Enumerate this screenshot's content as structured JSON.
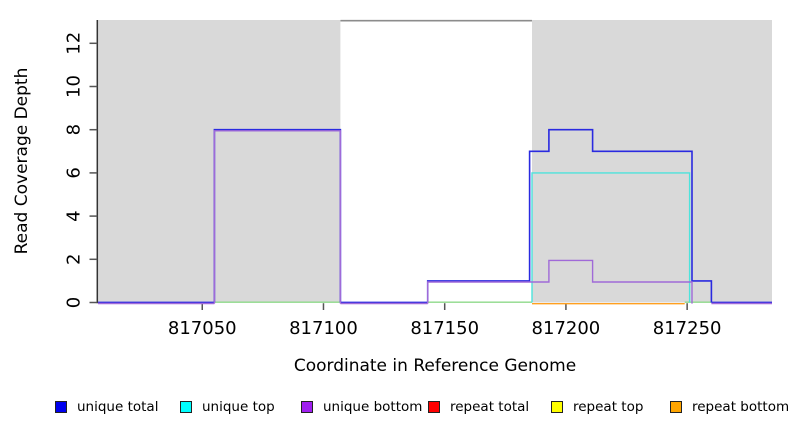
{
  "chart_data": {
    "type": "line",
    "subtype": "step-coverage",
    "title": "",
    "xlabel": "Coordinate in Reference Genome",
    "ylabel": "Read Coverage Depth",
    "xlim": [
      817007,
      817285
    ],
    "ylim": [
      0,
      13
    ],
    "x_ticks": [
      817050,
      817100,
      817150,
      817200,
      817250
    ],
    "y_ticks": [
      0,
      2,
      4,
      6,
      8,
      10,
      12
    ],
    "grid": false,
    "legend_position": "bottom",
    "shaded_regions": [
      {
        "name": "masked-left",
        "x0": 817007,
        "x1": 817107,
        "fill": "#d9d9d9"
      },
      {
        "name": "masked-right",
        "x0": 817186,
        "x1": 817285,
        "fill": "#d9d9d9"
      }
    ],
    "gap_region": {
      "x0": 817107,
      "x1": 817186,
      "fill": "#ffffff",
      "top_border_color": "#8c8c8c"
    },
    "series": [
      {
        "name": "unique total",
        "line_color": "#2a2ae0",
        "legend_color": "#0000ee",
        "points": [
          [
            817007,
            0
          ],
          [
            817055,
            0
          ],
          [
            817055,
            8
          ],
          [
            817107,
            8
          ],
          [
            817107,
            0
          ],
          [
            817143,
            0
          ],
          [
            817143,
            1
          ],
          [
            817185,
            1
          ],
          [
            817185,
            7
          ],
          [
            817193,
            7
          ],
          [
            817193,
            8
          ],
          [
            817211,
            8
          ],
          [
            817211,
            7
          ],
          [
            817252,
            7
          ],
          [
            817252,
            1
          ],
          [
            817260,
            1
          ],
          [
            817260,
            0
          ],
          [
            817285,
            0
          ]
        ]
      },
      {
        "name": "unique top",
        "line_color": "#4de3dc",
        "legend_color": "#00ffff",
        "points": [
          [
            817007,
            0
          ],
          [
            817186,
            0
          ],
          [
            817186,
            6
          ],
          [
            817251,
            6
          ],
          [
            817251,
            0
          ],
          [
            817285,
            0
          ]
        ]
      },
      {
        "name": "unique bottom",
        "line_color": "#a06ad8",
        "legend_color": "#a020f0",
        "points": [
          [
            817007,
            0
          ],
          [
            817055,
            0
          ],
          [
            817055,
            8
          ],
          [
            817107,
            8
          ],
          [
            817107,
            0
          ],
          [
            817143,
            0
          ],
          [
            817143,
            1
          ],
          [
            817193,
            1
          ],
          [
            817193,
            2
          ],
          [
            817211,
            2
          ],
          [
            817211,
            1
          ],
          [
            817252,
            1
          ],
          [
            817252,
            0
          ],
          [
            817285,
            0
          ]
        ]
      },
      {
        "name": "repeat total",
        "line_color": "#dd2222",
        "legend_color": "#ff0000",
        "points": [
          [
            817007,
            0
          ],
          [
            817285,
            0
          ]
        ]
      },
      {
        "name": "repeat top",
        "line_color": "#e8e23c",
        "legend_color": "#ffff00",
        "points": [
          [
            817007,
            0
          ],
          [
            817285,
            0
          ]
        ]
      },
      {
        "name": "repeat bottom",
        "line_color": "#ffa020",
        "legend_color": "#ffa500",
        "points": [
          [
            817007,
            0
          ],
          [
            817285,
            0
          ]
        ]
      }
    ],
    "zero_line_visible_colors": [
      {
        "x0": 817007,
        "x1": 817055,
        "color": "#2a2ae0",
        "dy": -0.2
      },
      {
        "x0": 817007,
        "x1": 817055,
        "color": "#a06ad8",
        "dy": 1.0
      },
      {
        "x0": 817055,
        "x1": 817107,
        "color": "#8ed98a",
        "dy": -0.3
      },
      {
        "x0": 817107,
        "x1": 817143,
        "color": "#2a2ae0",
        "dy": -0.2
      },
      {
        "x0": 817107,
        "x1": 817143,
        "color": "#a06ad8",
        "dy": 1.0
      },
      {
        "x0": 817143,
        "x1": 817186,
        "color": "#8ed98a",
        "dy": -0.3
      },
      {
        "x0": 817186,
        "x1": 817249,
        "color": "#ffa020",
        "dy": 1.2
      },
      {
        "x0": 817249,
        "x1": 817260,
        "color": "#8ed98a",
        "dy": -0.3
      },
      {
        "x0": 817260,
        "x1": 817285,
        "color": "#2a2ae0",
        "dy": -0.2
      },
      {
        "x0": 817260,
        "x1": 817285,
        "color": "#a06ad8",
        "dy": 1.0
      }
    ]
  },
  "legend": {
    "items": [
      {
        "label": "unique total",
        "color": "#0000ee"
      },
      {
        "label": "unique top",
        "color": "#00ffff"
      },
      {
        "label": "unique bottom",
        "color": "#a020f0"
      },
      {
        "label": "repeat total",
        "color": "#ff0000"
      },
      {
        "label": "repeat top",
        "color": "#ffff00"
      },
      {
        "label": "repeat bottom",
        "color": "#ffa500"
      }
    ]
  },
  "axis_colors": {
    "axis_line": "#333333",
    "tick": "#555555",
    "text": "#000000"
  }
}
